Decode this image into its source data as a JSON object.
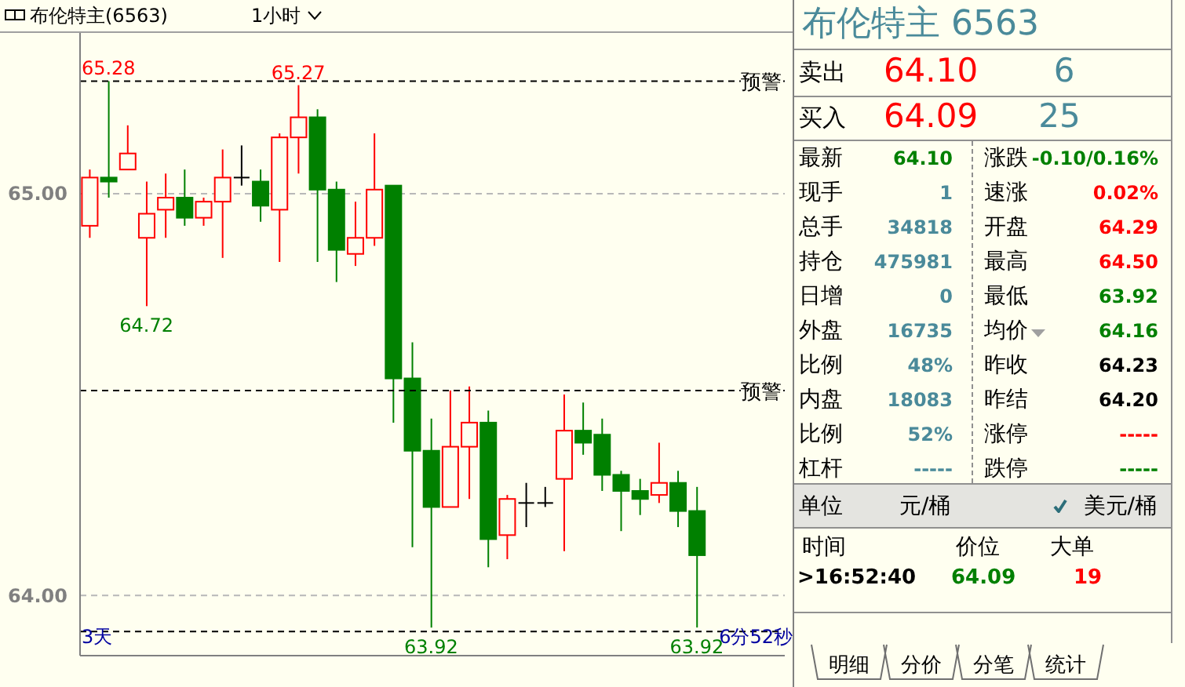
{
  "chart_data": [
    {
      "type": "candlestick",
      "title": "布伦特主(6563)",
      "subtitle": "1小时",
      "categories": [
        null,
        null,
        null,
        null,
        null,
        null,
        null,
        null,
        null,
        null,
        null,
        null,
        null,
        null,
        null,
        null,
        null,
        null,
        null,
        null,
        null,
        null,
        null,
        null,
        null,
        null,
        null,
        null,
        null,
        null,
        null,
        null,
        null
      ],
      "ohlc": [
        [
          64.92,
          65.06,
          64.89,
          65.04
        ],
        [
          65.04,
          65.28,
          64.99,
          65.03
        ],
        [
          65.06,
          65.17,
          65.06,
          65.1
        ],
        [
          64.89,
          65.03,
          64.72,
          64.95
        ],
        [
          64.96,
          65.05,
          64.89,
          64.99
        ],
        [
          64.99,
          65.06,
          64.92,
          64.94
        ],
        [
          64.94,
          64.99,
          64.92,
          64.98
        ],
        [
          64.98,
          65.11,
          64.84,
          65.04
        ],
        [
          65.04,
          65.12,
          65.02,
          65.04
        ],
        [
          65.03,
          65.06,
          64.93,
          64.97
        ],
        [
          64.96,
          65.15,
          64.83,
          65.14
        ],
        [
          65.14,
          65.27,
          65.05,
          65.19
        ],
        [
          65.19,
          65.21,
          64.83,
          65.01
        ],
        [
          65.01,
          65.03,
          64.78,
          64.86
        ],
        [
          64.85,
          64.98,
          64.82,
          64.89
        ],
        [
          64.89,
          65.15,
          64.87,
          65.01
        ],
        [
          65.02,
          65.02,
          64.43,
          64.54
        ],
        [
          64.54,
          64.63,
          64.12,
          64.36
        ],
        [
          64.36,
          64.44,
          63.92,
          64.22
        ],
        [
          64.22,
          64.51,
          64.22,
          64.37
        ],
        [
          64.37,
          64.52,
          64.24,
          64.43
        ],
        [
          64.43,
          64.46,
          64.07,
          64.14
        ],
        [
          64.15,
          64.25,
          64.09,
          64.24
        ],
        [
          64.23,
          64.28,
          64.17,
          64.23
        ],
        [
          64.23,
          64.27,
          64.22,
          64.23
        ],
        [
          64.29,
          64.5,
          64.11,
          64.41
        ],
        [
          64.41,
          64.48,
          64.35,
          64.38
        ],
        [
          64.4,
          64.44,
          64.26,
          64.3
        ],
        [
          64.3,
          64.31,
          64.16,
          64.26
        ],
        [
          64.26,
          64.29,
          64.2,
          64.24
        ],
        [
          64.25,
          64.38,
          64.23,
          64.28
        ],
        [
          64.28,
          64.31,
          64.17,
          64.21
        ],
        [
          64.21,
          64.27,
          63.92,
          64.1
        ]
      ],
      "colors": [
        "#ff0000",
        "#008000",
        "#ff0000",
        "#ff0000",
        "#ff0000",
        "#008000",
        "#ff0000",
        "#ff0000",
        "#000000",
        "#008000",
        "#ff0000",
        "#ff0000",
        "#008000",
        "#008000",
        "#ff0000",
        "#ff0000",
        "#008000",
        "#008000",
        "#008000",
        "#ff0000",
        "#ff0000",
        "#008000",
        "#ff0000",
        "#000000",
        "#000000",
        "#ff0000",
        "#008000",
        "#008000",
        "#008000",
        "#008000",
        "#ff0000",
        "#008000",
        "#008000"
      ],
      "ylim": [
        63.85,
        65.4
      ],
      "yticks": [
        {
          "value": 64,
          "label": "64.00"
        },
        {
          "value": 65,
          "label": "65.00"
        }
      ],
      "grid": "y",
      "tick_labels": "y",
      "ref_lines": [
        {
          "axis": "y",
          "value": 65.28,
          "label": "预警",
          "color": "#000000",
          "line_style": "dashed"
        },
        {
          "axis": "y",
          "value": 64.51,
          "label": "预警",
          "color": "#000000",
          "line_style": "dashed"
        },
        {
          "axis": "y",
          "value": 63.91,
          "label": null,
          "color": "#000000",
          "line_style": "dashed"
        }
      ],
      "annotations": [
        {
          "text": "65.28",
          "y": 65.28
        },
        {
          "text": "65.27",
          "y": 65.27
        },
        {
          "text": "64.72",
          "y": 64.72
        },
        {
          "text": "63.92",
          "y": 63.92
        },
        {
          "text": "63.92",
          "y": 63.92
        },
        "3天",
        "6分52秒"
      ]
    },
    {
      "type": "other",
      "title": "布伦特主 6563",
      "annotations": [
        "卖出",
        "64.10",
        "6",
        "买入",
        "64.09",
        "25",
        "最新",
        "64.10",
        "涨跌",
        "-0.10/0.16%",
        "现手",
        "1",
        "速涨",
        "0.02%",
        "总手",
        "34818",
        "开盘",
        "64.29",
        "持仓",
        "475981",
        "最高",
        "64.50",
        "日增",
        "0",
        "最低",
        "63.92",
        "外盘",
        "16735",
        "均价",
        "64.16",
        "比例",
        "48%",
        "昨收",
        "64.23",
        "内盘",
        "18083",
        "昨结",
        "64.20",
        "比例",
        "52%",
        "涨停",
        "-----",
        "杠杆",
        "-----",
        "跌停",
        "-----",
        "单位",
        "元/桶",
        "美元/桶",
        "时间",
        "价位",
        "大单",
        ">16:52:40",
        "64.09",
        "19",
        "明细",
        "分价",
        "分笔",
        "统计"
      ]
    }
  ]
}
